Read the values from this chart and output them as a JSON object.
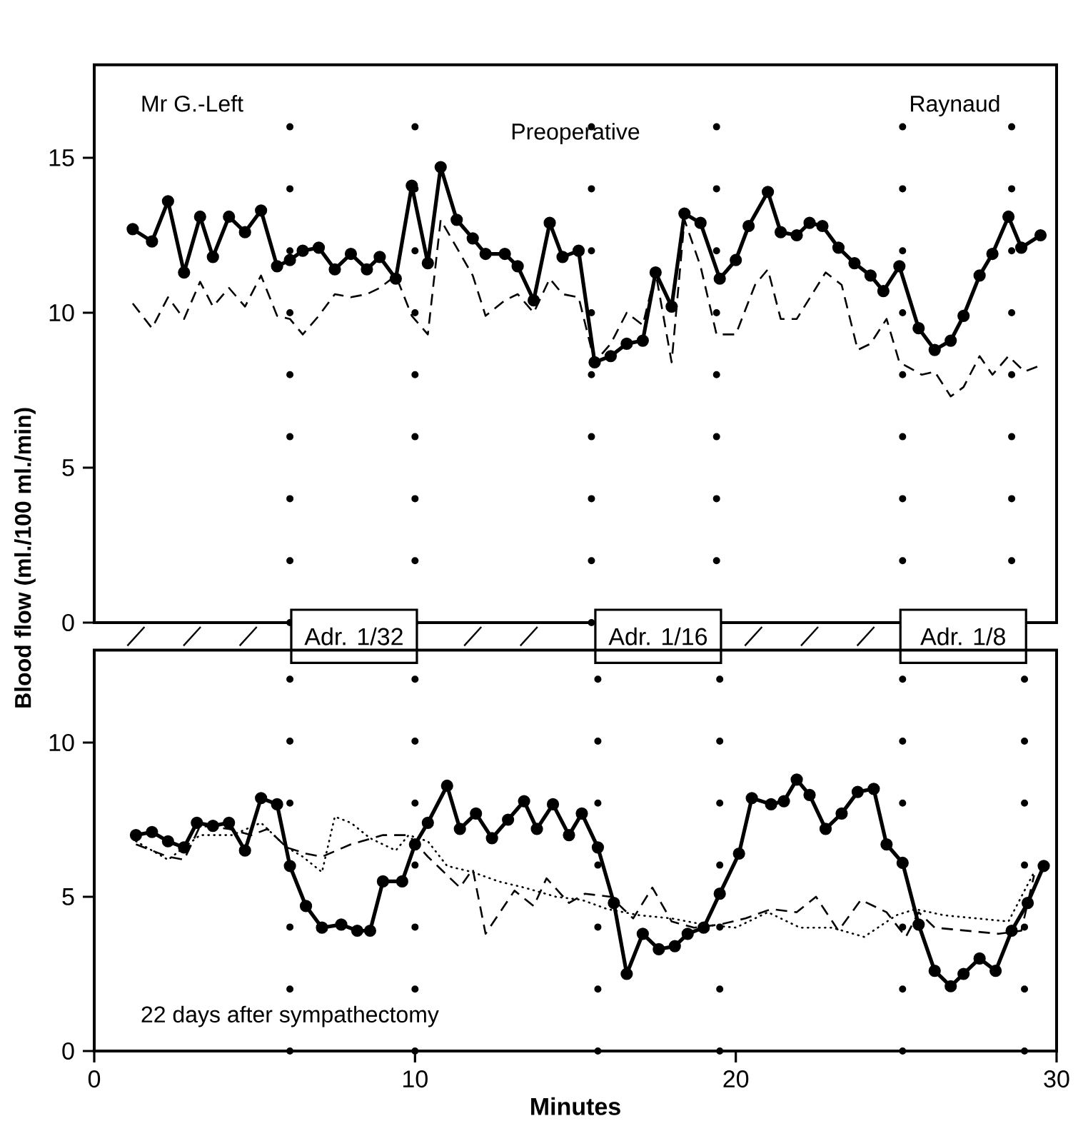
{
  "chart_data": [
    {
      "type": "line",
      "annotations": [
        "Mr G.-Left",
        "Preoperative",
        "Raynaud",
        "Adr. 1/32",
        "Adr. 1/16",
        "Adr. 1/8"
      ],
      "ylabel": "Blood flow (ml./100 ml./min)",
      "xlim": [
        0,
        30
      ],
      "xticks": [
        0,
        10,
        20,
        30
      ],
      "ylim": [
        0,
        18
      ],
      "yticks": [
        0,
        5,
        10,
        15
      ],
      "tick_labels": "y",
      "series": [
        {
          "color": "#000000",
          "marker": "circle",
          "line_style": "solid",
          "x": [
            1.2,
            1.8,
            2.3,
            2.8,
            3.3,
            3.7,
            4.2,
            4.7,
            5.2,
            5.7,
            6.1,
            6.5,
            7.0,
            7.5,
            8.0,
            8.5,
            8.9,
            9.4,
            9.9,
            10.4,
            10.8,
            11.3,
            11.8,
            12.2,
            12.8,
            13.2,
            13.7,
            14.2,
            14.6,
            15.1,
            15.6,
            16.1,
            16.6,
            17.1,
            17.5,
            18.0,
            18.4,
            18.9,
            19.5,
            20.0,
            20.4,
            21.0,
            21.4,
            21.9,
            22.3,
            22.7,
            23.2,
            23.7,
            24.2,
            24.6,
            25.1,
            25.7,
            26.2,
            26.7,
            27.1,
            27.6,
            28.0,
            28.5,
            28.9,
            29.5
          ],
          "values": [
            12.7,
            12.3,
            13.6,
            11.3,
            13.1,
            11.8,
            13.1,
            12.6,
            13.3,
            11.5,
            11.7,
            12.0,
            12.1,
            11.4,
            11.9,
            11.4,
            11.8,
            11.1,
            14.1,
            11.6,
            14.7,
            13.0,
            12.4,
            11.9,
            11.9,
            11.5,
            10.4,
            12.9,
            11.8,
            12.0,
            8.4,
            8.6,
            9.0,
            9.1,
            11.3,
            10.2,
            13.2,
            12.9,
            11.1,
            11.7,
            12.8,
            13.9,
            12.6,
            12.5,
            12.9,
            12.8,
            12.1,
            11.6,
            11.2,
            10.7,
            11.5,
            9.5,
            8.8,
            9.1,
            9.9,
            11.2,
            11.9,
            13.1,
            12.1,
            12.5
          ]
        },
        {
          "color": "#000000",
          "marker": "none",
          "line_style": "dashed",
          "x": [
            1.2,
            1.8,
            2.3,
            2.8,
            3.3,
            3.7,
            4.2,
            4.7,
            5.2,
            5.7,
            6.1,
            6.5,
            7.0,
            7.5,
            8.0,
            8.5,
            8.9,
            9.4,
            9.9,
            10.4,
            10.8,
            11.3,
            11.8,
            12.2,
            12.8,
            13.2,
            13.7,
            14.2,
            14.6,
            15.1,
            15.6,
            16.1,
            16.6,
            17.1,
            17.5,
            18.0,
            18.4,
            18.9,
            19.4,
            20.0,
            20.6,
            21.0,
            21.4,
            21.9,
            22.8,
            23.3,
            23.8,
            24.2,
            24.7,
            25.1,
            25.8,
            26.2,
            26.7,
            27.1,
            27.6,
            28.0,
            28.5,
            29.0,
            29.5
          ],
          "values": [
            10.3,
            9.5,
            10.5,
            9.8,
            11.0,
            10.2,
            10.8,
            10.2,
            11.2,
            9.9,
            9.8,
            9.3,
            9.9,
            10.6,
            10.5,
            10.6,
            10.8,
            11.2,
            9.9,
            9.3,
            13.0,
            12.1,
            11.2,
            9.9,
            10.4,
            10.6,
            10.0,
            11.1,
            10.6,
            10.5,
            8.4,
            9.0,
            10.0,
            9.6,
            11.3,
            8.4,
            13.0,
            11.5,
            9.3,
            9.3,
            10.9,
            11.4,
            9.8,
            9.8,
            11.3,
            10.9,
            8.8,
            9.0,
            9.8,
            8.4,
            8.0,
            8.1,
            7.3,
            7.6,
            8.6,
            8.0,
            8.6,
            8.1,
            8.3
          ]
        }
      ],
      "ref_lines": [
        {
          "axis": "x",
          "value": 6.1,
          "line_style": "dotted"
        },
        {
          "axis": "x",
          "value": 10.0,
          "line_style": "dotted"
        },
        {
          "axis": "x",
          "value": 15.5,
          "line_style": "dotted"
        },
        {
          "axis": "x",
          "value": 19.4,
          "line_style": "dotted"
        },
        {
          "axis": "x",
          "value": 25.2,
          "line_style": "dotted"
        },
        {
          "axis": "x",
          "value": 28.6,
          "line_style": "dotted"
        }
      ]
    },
    {
      "type": "line",
      "annotations": [
        "22 days after sympathectomy"
      ],
      "xlabel": "Minutes",
      "xlim": [
        0,
        30
      ],
      "xticks": [
        0,
        10,
        20,
        30
      ],
      "ylim": [
        0,
        13
      ],
      "yticks": [
        0,
        5,
        10
      ],
      "series": [
        {
          "color": "#000000",
          "marker": "circle",
          "line_style": "solid",
          "x": [
            1.3,
            1.8,
            2.3,
            2.8,
            3.2,
            3.7,
            4.2,
            4.7,
            5.2,
            5.7,
            6.1,
            6.6,
            7.1,
            7.7,
            8.2,
            8.6,
            9.0,
            9.6,
            10.0,
            10.4,
            11.0,
            11.4,
            11.9,
            12.4,
            12.9,
            13.4,
            13.8,
            14.3,
            14.8,
            15.2,
            15.7,
            16.2,
            16.6,
            17.1,
            17.6,
            18.1,
            18.5,
            19.0,
            19.5,
            20.1,
            20.5,
            21.1,
            21.5,
            21.9,
            22.3,
            22.8,
            23.3,
            23.8,
            24.3,
            24.7,
            25.2,
            25.7,
            26.2,
            26.7,
            27.1,
            27.6,
            28.1,
            28.6,
            29.1,
            29.6
          ],
          "values": [
            7.0,
            7.1,
            6.8,
            6.6,
            7.4,
            7.3,
            7.4,
            6.5,
            8.2,
            8.0,
            6.0,
            4.7,
            4.0,
            4.1,
            3.9,
            3.9,
            5.5,
            5.5,
            6.7,
            7.4,
            8.6,
            7.2,
            7.7,
            6.9,
            7.5,
            8.1,
            7.2,
            8.0,
            7.0,
            7.7,
            6.6,
            4.8,
            2.5,
            3.8,
            3.3,
            3.4,
            3.8,
            4.0,
            5.1,
            6.4,
            8.2,
            8.0,
            8.1,
            8.8,
            8.3,
            7.2,
            7.7,
            8.4,
            8.5,
            6.7,
            6.1,
            4.1,
            2.6,
            2.1,
            2.5,
            3.0,
            2.6,
            3.9,
            4.8,
            6.0
          ]
        },
        {
          "color": "#000000",
          "marker": "none",
          "line_style": "dashed",
          "x": [
            1.3,
            2.3,
            2.8,
            3.3,
            4.2,
            4.9,
            5.4,
            6.0,
            6.6,
            7.1,
            8.0,
            9.0,
            9.8,
            10.4,
            11.4,
            11.8,
            12.2,
            13.1,
            13.7,
            14.1,
            14.8,
            15.3,
            16.1,
            16.8,
            17.4,
            18.0,
            18.7,
            19.5,
            20.3,
            21.1,
            21.9,
            22.5,
            23.2,
            23.9,
            24.7,
            25.3,
            25.7,
            26.2,
            27.2,
            28.2,
            28.9,
            29.3
          ],
          "values": [
            6.7,
            6.3,
            6.2,
            7.3,
            7.2,
            7.0,
            7.2,
            6.6,
            6.4,
            6.3,
            6.7,
            7.0,
            7.0,
            6.3,
            5.3,
            5.9,
            3.8,
            5.2,
            4.7,
            5.6,
            4.8,
            5.1,
            5.0,
            4.3,
            5.3,
            4.2,
            4.0,
            4.1,
            4.3,
            4.6,
            4.5,
            5.0,
            3.9,
            4.9,
            4.5,
            3.7,
            4.5,
            4.0,
            3.9,
            3.8,
            3.9,
            5.7
          ]
        },
        {
          "color": "#000000",
          "marker": "none",
          "line_style": "dotted",
          "x": [
            1.3,
            2.3,
            3.3,
            4.3,
            5.2,
            6.0,
            6.5,
            7.1,
            7.5,
            8.0,
            8.6,
            9.4,
            9.8,
            10.4,
            11.0,
            11.8,
            12.6,
            13.4,
            14.4,
            15.2,
            16.0,
            17.0,
            18.0,
            19.0,
            20.0,
            21.0,
            22.0,
            23.0,
            24.0,
            25.0,
            25.6,
            26.5,
            27.5,
            28.5,
            29.3
          ],
          "values": [
            6.8,
            6.2,
            7.0,
            7.0,
            7.4,
            6.6,
            6.3,
            5.8,
            7.6,
            7.4,
            6.9,
            6.5,
            7.0,
            6.8,
            6.0,
            5.8,
            5.5,
            5.3,
            5.0,
            4.9,
            4.6,
            4.4,
            4.3,
            4.1,
            4.0,
            4.5,
            4.0,
            4.0,
            3.7,
            4.4,
            4.6,
            4.4,
            4.3,
            4.2,
            5.8
          ]
        }
      ],
      "ref_lines": [
        {
          "axis": "x",
          "value": 6.1,
          "line_style": "dotted"
        },
        {
          "axis": "x",
          "value": 10.0,
          "line_style": "dotted"
        },
        {
          "axis": "x",
          "value": 15.7,
          "line_style": "dotted"
        },
        {
          "axis": "x",
          "value": 19.5,
          "line_style": "dotted"
        },
        {
          "axis": "x",
          "value": 25.2,
          "line_style": "dotted"
        },
        {
          "axis": "x",
          "value": 29.0,
          "line_style": "dotted"
        }
      ]
    }
  ]
}
